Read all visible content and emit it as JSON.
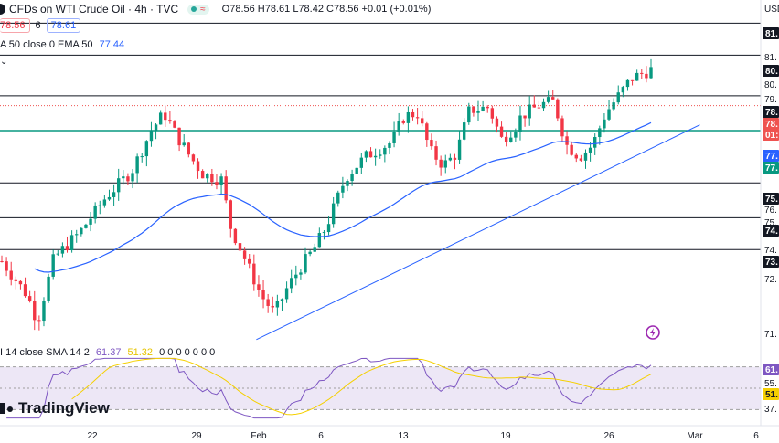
{
  "header": {
    "title": "CFDs on WTI Crude Oil · 4h · TVC",
    "ohlc": "O78.56  H78.61  L78.42  C78.56  +0.01 (+0.01%)",
    "sell_price": "78.56",
    "spread": "6",
    "buy_price": "78.61",
    "status_dot_color": "#26a69a",
    "wave_icon_color": "#f23645"
  },
  "ema_legend": {
    "label": "A 50 close 0 EMA 50",
    "value": "77.44"
  },
  "rsi_legend": {
    "label": "I 14 close SMA 14 2",
    "rsi_value": "61.37",
    "sma_value": "51.32",
    "extra": "0 0 0 0 0 0 0"
  },
  "price_axis": {
    "currency": "USD",
    "tags": [
      {
        "text": "81.",
        "bg": "#131722"
      },
      {
        "text": "80.",
        "bg": "#131722"
      },
      {
        "text": "78.",
        "bg": "#131722"
      },
      {
        "text": "78.",
        "bg": "#ef5350"
      },
      {
        "text": "01:",
        "bg": "#ef5350"
      },
      {
        "text": "77.",
        "bg": "#2962ff"
      },
      {
        "text": "77.",
        "bg": "#089981"
      },
      {
        "text": "75.",
        "bg": "#131722"
      },
      {
        "text": "74.",
        "bg": "#131722"
      },
      {
        "text": "73.",
        "bg": "#131722"
      }
    ],
    "ticks": [
      "81.",
      "80.",
      "79.",
      "76.",
      "75.",
      "74.",
      "72.",
      "71."
    ],
    "rsi_tags": [
      {
        "text": "61.",
        "bg": "#7e57c2"
      },
      {
        "text": "51.",
        "bg": "#f5d000"
      }
    ],
    "rsi_ticks": [
      "55.",
      "37."
    ]
  },
  "time_axis": [
    "22",
    "29",
    "Feb",
    "6",
    "13",
    "19",
    "26",
    "Mar",
    "6"
  ],
  "logo_text": "TradingView",
  "chart_data": {
    "type": "candlestick",
    "price_range": [
      70.4,
      82.2
    ],
    "horizontal_levels": [
      81.4,
      80.3,
      78.9,
      77.7,
      75.9,
      74.7,
      73.6
    ],
    "ema_color": "#2962ff",
    "support_level_color": "#089981",
    "trendline": {
      "start": [
        0.337,
        70.5
      ],
      "end": [
        0.92,
        77.9
      ]
    },
    "rsi": {
      "upper_band": 70,
      "lower_band": 30,
      "last_rsi": 61.37,
      "last_sma": 51.32,
      "rsi_color": "#7e57c2",
      "sma_color": "#f5d000"
    }
  }
}
